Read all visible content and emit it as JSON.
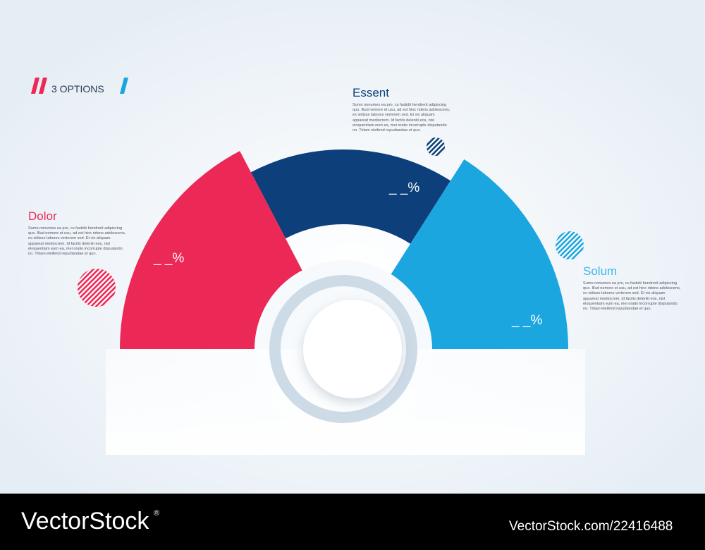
{
  "header": {
    "label": "3 OPTIONS"
  },
  "options": [
    {
      "title": "Dolor",
      "text": "Sumo nonumes ea pro, cu fastidii hendrerit adipiscing quo. Illud nemore et usu, ad est hinc ridens adolescens, ex vidisse labores verterem sed. Et vix aliquam appareat mediocrem. Id facilis deleniti eos, nisl eloquentiam eum ea, mei oratio incorrupte disputando no. Tritani eleifend repudiandae et quo.",
      "percent": "_ _%"
    },
    {
      "title": "Essent",
      "text": "Sumo nonumes ea pro, cu fastidii hendrerit adipiscing quo. Illud nemore et usu, ad est hinc ridens adolescens, ex vidisse labores verterem sed. Et vix aliquam appareat mediocrem. Id facilis deleniti eos, nisl eloquentiam eum ea, mei oratio incorrupte disputando no. Tritani eleifend repudiandae et quo.",
      "percent": "_ _%"
    },
    {
      "title": "Solum",
      "text": "Sumo nonumes ea pro, cu fastidii hendrerit adipiscing quo. Illud nemore et usu, ad est hinc ridens adolescens, ex vidisse labores verterem sed. Et vix aliquam appareat mediocrem. Id facilis deleniti eos, nisl eloquentiam eum ea, mei oratio incorrupte disputando no. Tritani eleifend repudiandae et quo.",
      "percent": "_ _%"
    }
  ],
  "footer": {
    "brand": "VectorStock",
    "mark": "®",
    "id": "VectorStock.com/22416488"
  }
}
